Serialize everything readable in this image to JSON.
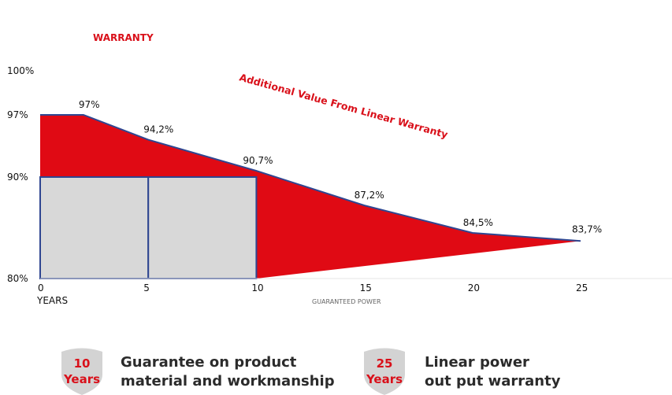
{
  "chart_data": {
    "type": "area",
    "title": "WARRANTY",
    "annotation": "Additional Value From Linear Warranty",
    "xlabel": "YEARS",
    "xaxis_caption": "GUARANTEED POWER",
    "xlim": [
      0,
      25
    ],
    "ylim": [
      80,
      100
    ],
    "x_ticks": [
      "0",
      "5",
      "10",
      "15",
      "20",
      "25"
    ],
    "y_ticks": [
      "100%",
      "97%",
      "90%",
      "80%"
    ],
    "linear": {
      "x": [
        0,
        2,
        5,
        10,
        15,
        20,
        25
      ],
      "y": [
        97,
        97,
        94.2,
        90.7,
        87.2,
        84.5,
        83.7
      ],
      "labels": [
        null,
        "97%",
        "94,2%",
        "90,7%",
        "87,2%",
        "84,5%",
        "83,7%"
      ]
    },
    "step": [
      {
        "from": 0,
        "to": 10,
        "value": 90
      },
      {
        "from": 10,
        "to": 25,
        "value": 80
      }
    ],
    "colors": {
      "area": "#e00a14",
      "blocks": "#d8d8d8",
      "outline": "#2f4691",
      "title": "#d9101a"
    }
  },
  "badges": [
    {
      "number": "10",
      "unit": "Years",
      "text_line1": "Guarantee on product",
      "text_line2": "material and workmanship"
    },
    {
      "number": "25",
      "unit": "Years",
      "text_line1": "Linear power",
      "text_line2": "out put warranty"
    }
  ]
}
